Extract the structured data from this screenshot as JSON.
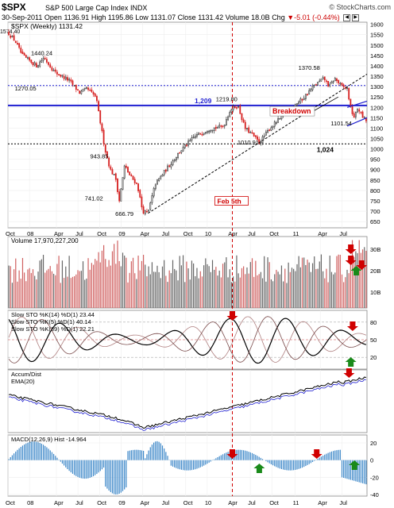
{
  "header": {
    "symbol": "$SPX",
    "description": "S&P 500 Large Cap Index",
    "exchange": "INDX",
    "copyright": "© StockCharts.com",
    "date": "30-Sep-2011",
    "open_label": "Open",
    "open": "1136.91",
    "high_label": "High",
    "high": "1195.86",
    "low_label": "Low",
    "low": "1131.07",
    "close_label": "Close",
    "close": "1131.42",
    "volume_label": "Volume",
    "volume": "18.0B",
    "chg_label": "Chg",
    "chg": "-5.01 (-0.44%)",
    "chg_icon": "down-triangle-icon",
    "control_icons": [
      "scroll-left-icon",
      "scroll-right-icon"
    ]
  },
  "colors": {
    "up": "#333333",
    "down": "#d62020",
    "ma": "#1f1fd0",
    "annot": "#d00000",
    "arrow_up": "#1a8a1a"
  },
  "chart_data": {
    "type": "candlestick",
    "panels": [
      {
        "name": "price",
        "legend": "$SPX (Weekly) 1131.42",
        "corner_value": "1574.40",
        "y_ticks": [
          650,
          700,
          750,
          800,
          850,
          900,
          950,
          1000,
          1050,
          1100,
          1150,
          1200,
          1250,
          1300,
          1350,
          1400,
          1450,
          1500,
          1550,
          1600
        ],
        "ylim": [
          620,
          1610
        ],
        "anchors": [
          {
            "t": 0.0,
            "v": 1560
          },
          {
            "t": 0.02,
            "v": 1520
          },
          {
            "t": 0.04,
            "v": 1450
          },
          {
            "t": 0.08,
            "v": 1400
          },
          {
            "t": 0.1,
            "v": 1440
          },
          {
            "t": 0.13,
            "v": 1370
          },
          {
            "t": 0.17,
            "v": 1330
          },
          {
            "t": 0.2,
            "v": 1270
          },
          {
            "t": 0.22,
            "v": 1290
          },
          {
            "t": 0.245,
            "v": 1250
          },
          {
            "t": 0.27,
            "v": 1000
          },
          {
            "t": 0.285,
            "v": 900
          },
          {
            "t": 0.3,
            "v": 860
          },
          {
            "t": 0.31,
            "v": 750
          },
          {
            "t": 0.325,
            "v": 920
          },
          {
            "t": 0.34,
            "v": 870
          },
          {
            "t": 0.36,
            "v": 830
          },
          {
            "t": 0.375,
            "v": 700
          },
          {
            "t": 0.39,
            "v": 690
          },
          {
            "t": 0.41,
            "v": 830
          },
          {
            "t": 0.44,
            "v": 900
          },
          {
            "t": 0.48,
            "v": 990
          },
          {
            "t": 0.52,
            "v": 1060
          },
          {
            "t": 0.56,
            "v": 1095
          },
          {
            "t": 0.6,
            "v": 1110
          },
          {
            "t": 0.62,
            "v": 1190
          },
          {
            "t": 0.64,
            "v": 1210
          },
          {
            "t": 0.66,
            "v": 1100
          },
          {
            "t": 0.68,
            "v": 1070
          },
          {
            "t": 0.7,
            "v": 1030
          },
          {
            "t": 0.73,
            "v": 1100
          },
          {
            "t": 0.76,
            "v": 1150
          },
          {
            "t": 0.79,
            "v": 1200
          },
          {
            "t": 0.82,
            "v": 1240
          },
          {
            "t": 0.85,
            "v": 1300
          },
          {
            "t": 0.88,
            "v": 1340
          },
          {
            "t": 0.895,
            "v": 1300
          },
          {
            "t": 0.91,
            "v": 1340
          },
          {
            "t": 0.93,
            "v": 1300
          },
          {
            "t": 0.945,
            "v": 1290
          },
          {
            "t": 0.955,
            "v": 1190
          },
          {
            "t": 0.965,
            "v": 1150
          },
          {
            "t": 0.975,
            "v": 1200
          },
          {
            "t": 0.985,
            "v": 1160
          },
          {
            "t": 1.0,
            "v": 1131
          }
        ],
        "value_labels": [
          {
            "t": 0.095,
            "v": 1440,
            "text": "1440.24"
          },
          {
            "t": 0.05,
            "v": 1270,
            "text": "1270.05"
          },
          {
            "t": 0.26,
            "v": 943,
            "text": "943.85"
          },
          {
            "t": 0.245,
            "v": 741,
            "text": "741.02"
          },
          {
            "t": 0.33,
            "v": 666,
            "text": "666.79"
          },
          {
            "t": 0.61,
            "v": 1219,
            "text": "1219.80"
          },
          {
            "t": 0.67,
            "v": 1010,
            "text": "1010.91"
          },
          {
            "t": 0.84,
            "v": 1370,
            "text": "1370.58"
          },
          {
            "t": 0.93,
            "v": 1101,
            "text": "1101.54"
          }
        ],
        "hlines": [
          {
            "v": 1305,
            "style": "dotted",
            "color": "#1f1fd0"
          },
          {
            "v": 1209,
            "style": "solid",
            "color": "#1f1fd0",
            "label": "1,209"
          },
          {
            "v": 1024,
            "style": "dotted",
            "color": "#000000",
            "label": "1,024"
          }
        ],
        "annotations": [
          "Breakdown",
          "Feb 5th"
        ]
      },
      {
        "name": "volume",
        "legend": "Volume 17,970,227,200",
        "y_ticks": [
          "10B",
          "20B",
          "30B"
        ]
      },
      {
        "name": "slow-stochastics",
        "legends": [
          {
            "label": "Slow STO %K(14) %D(1)",
            "k": "23.44",
            "d": "23.44"
          },
          {
            "label": "Slow STO %K(5) %D(1)",
            "k": "40.14",
            "d": "40.14"
          },
          {
            "label": "Slow STO %K(39) %D(1)",
            "k": "22.21",
            "d": "22.21"
          }
        ],
        "y_ticks": [
          20,
          50,
          80
        ]
      },
      {
        "name": "accum-dist",
        "legends": [
          "Accum/Dist",
          "EMA(20)"
        ]
      },
      {
        "name": "macd",
        "legend": "MACD(12,26,9) Hist -14.964",
        "y_ticks": [
          20,
          0,
          -20,
          -40
        ]
      }
    ],
    "x_ticks": [
      {
        "t": 0.0,
        "label": "Oct"
      },
      {
        "t": 0.06,
        "label": "08"
      },
      {
        "t": 0.135,
        "label": "Apr"
      },
      {
        "t": 0.195,
        "label": "Jul"
      },
      {
        "t": 0.255,
        "label": "Oct"
      },
      {
        "t": 0.315,
        "label": "09"
      },
      {
        "t": 0.375,
        "label": "Apr"
      },
      {
        "t": 0.435,
        "label": "Jul"
      },
      {
        "t": 0.495,
        "label": "Oct"
      },
      {
        "t": 0.555,
        "label": "10"
      },
      {
        "t": 0.62,
        "label": "Apr"
      },
      {
        "t": 0.675,
        "label": "Jul"
      },
      {
        "t": 0.735,
        "label": "Oct"
      },
      {
        "t": 0.8,
        "label": "11"
      },
      {
        "t": 0.87,
        "label": "Apr"
      },
      {
        "t": 0.93,
        "label": "Jul"
      }
    ],
    "event_line_t": 0.625
  }
}
